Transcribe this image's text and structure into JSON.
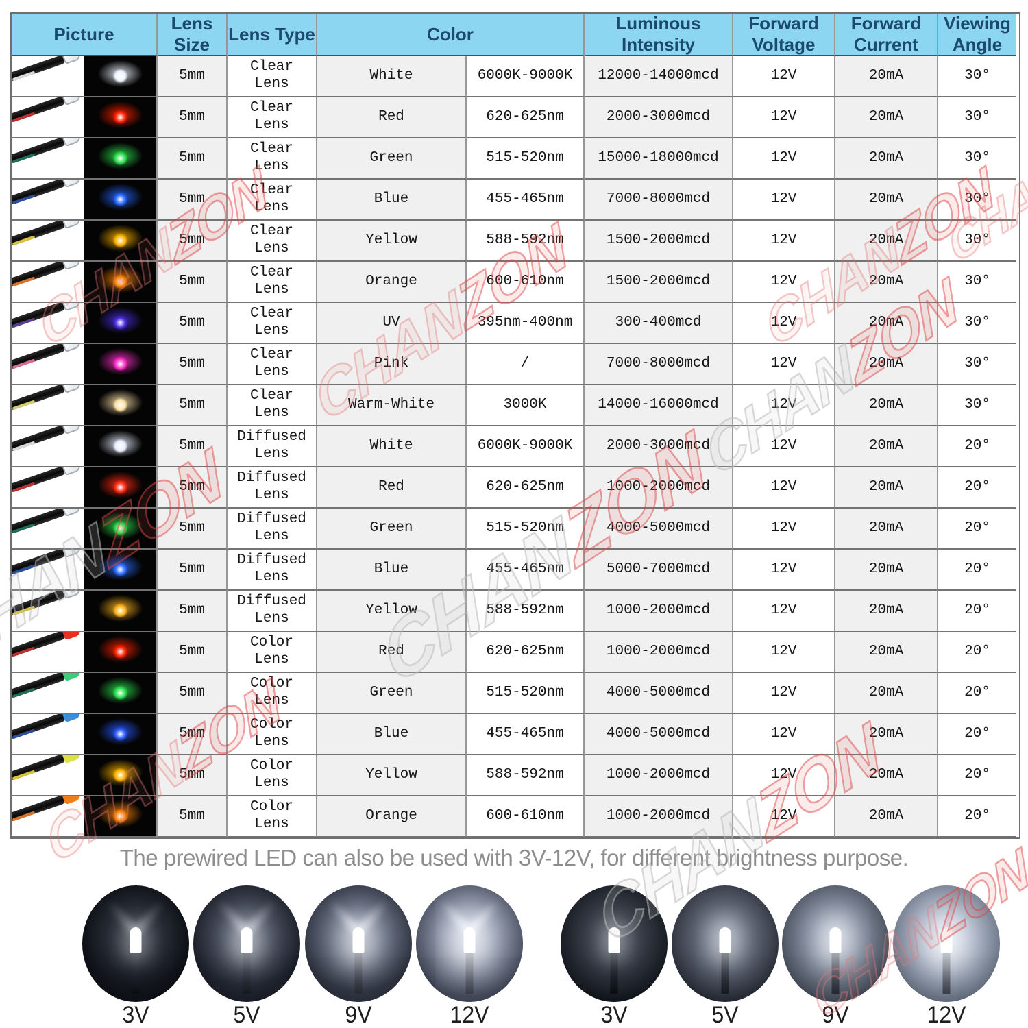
{
  "table": {
    "headers": {
      "picture": "Picture",
      "lens_size": "Lens Size",
      "lens_type": "Lens Type",
      "color": "Color",
      "intensity": "Luminous Intensity",
      "voltage": "Forward Voltage",
      "current": "Forward Current",
      "angle": "Viewing Angle"
    },
    "rows": [
      {
        "lens_size": "5mm",
        "lens_type": "Clear Lens",
        "color_name": "White",
        "color_value": "6000K-9000K",
        "intensity": "12000-14000mcd",
        "voltage": "12V",
        "current": "20mA",
        "angle": "30°",
        "glow": "#eef4ff",
        "stripe": "#d8d8d8",
        "bulb": "clear"
      },
      {
        "lens_size": "5mm",
        "lens_type": "Clear Lens",
        "color_name": "Red",
        "color_value": "620-625nm",
        "intensity": "2000-3000mcd",
        "voltage": "12V",
        "current": "20mA",
        "angle": "30°",
        "glow": "#ff2200",
        "stripe": "#c03030",
        "bulb": "clear"
      },
      {
        "lens_size": "5mm",
        "lens_type": "Clear Lens",
        "color_name": "Green",
        "color_value": "515-520nm",
        "intensity": "15000-18000mcd",
        "voltage": "12V",
        "current": "20mA",
        "angle": "30°",
        "glow": "#2ce24e",
        "stripe": "#1e6e5a",
        "bulb": "clear"
      },
      {
        "lens_size": "5mm",
        "lens_type": "Clear Lens",
        "color_name": "Blue",
        "color_value": "455-465nm",
        "intensity": "7000-8000mcd",
        "voltage": "12V",
        "current": "20mA",
        "angle": "30°",
        "glow": "#2565ff",
        "stripe": "#2a4fa0",
        "bulb": "clear"
      },
      {
        "lens_size": "5mm",
        "lens_type": "Clear Lens",
        "color_name": "Yellow",
        "color_value": "588-592nm",
        "intensity": "1500-2000mcd",
        "voltage": "12V",
        "current": "20mA",
        "angle": "30°",
        "glow": "#ffb400",
        "stripe": "#d8c23a",
        "bulb": "clear"
      },
      {
        "lens_size": "5mm",
        "lens_type": "Clear Lens",
        "color_name": "Orange",
        "color_value": "600-610nm",
        "intensity": "1500-2000mcd",
        "voltage": "12V",
        "current": "20mA",
        "angle": "30°",
        "glow": "#ff8400",
        "stripe": "#d8742a",
        "bulb": "clear"
      },
      {
        "lens_size": "5mm",
        "lens_type": "Clear Lens",
        "color_name": "UV",
        "color_value": "395nm-400nm",
        "intensity": "300-400mcd",
        "voltage": "12V",
        "current": "20mA",
        "angle": "30°",
        "glow": "#4a2de0",
        "stripe": "#5a3f92",
        "bulb": "clear"
      },
      {
        "lens_size": "5mm",
        "lens_type": "Clear Lens",
        "color_name": "Pink",
        "color_value": "/",
        "intensity": "7000-8000mcd",
        "voltage": "12V",
        "current": "20mA",
        "angle": "30°",
        "glow": "#ff30c8",
        "stripe": "#d86a90",
        "bulb": "clear"
      },
      {
        "lens_size": "5mm",
        "lens_type": "Clear Lens",
        "color_name": "Warm-White",
        "color_value": "3000K",
        "intensity": "14000-16000mcd",
        "voltage": "12V",
        "current": "20mA",
        "angle": "30°",
        "glow": "#ffe2a8",
        "stripe": "#cfd06a",
        "bulb": "clear"
      },
      {
        "lens_size": "5mm",
        "lens_type": "Diffused Lens",
        "color_name": "White",
        "color_value": "6000K-9000K",
        "intensity": "2000-3000mcd",
        "voltage": "12V",
        "current": "20mA",
        "angle": "20°",
        "glow": "#e8eeff",
        "stripe": "#d8d8d8",
        "bulb": "clear"
      },
      {
        "lens_size": "5mm",
        "lens_type": "Diffused Lens",
        "color_name": "Red",
        "color_value": "620-625nm",
        "intensity": "1000-2000mcd",
        "voltage": "12V",
        "current": "20mA",
        "angle": "20°",
        "glow": "#ff2a14",
        "stripe": "#c03030",
        "bulb": "clear"
      },
      {
        "lens_size": "5mm",
        "lens_type": "Diffused Lens",
        "color_name": "Green",
        "color_value": "515-520nm",
        "intensity": "4000-5000mcd",
        "voltage": "12V",
        "current": "20mA",
        "angle": "20°",
        "glow": "#2ce24e",
        "stripe": "#1e6e5a",
        "bulb": "clear"
      },
      {
        "lens_size": "5mm",
        "lens_type": "Diffused Lens",
        "color_name": "Blue",
        "color_value": "455-465nm",
        "intensity": "5000-7000mcd",
        "voltage": "12V",
        "current": "20mA",
        "angle": "20°",
        "glow": "#2a6aff",
        "stripe": "#2a4fa0",
        "bulb": "clear"
      },
      {
        "lens_size": "5mm",
        "lens_type": "Diffused Lens",
        "color_name": "Yellow",
        "color_value": "588-592nm",
        "intensity": "1000-2000mcd",
        "voltage": "12V",
        "current": "20mA",
        "angle": "20°",
        "glow": "#ffb41e",
        "stripe": "#d8c23a",
        "bulb": "clear"
      },
      {
        "lens_size": "5mm",
        "lens_type": "Color Lens",
        "color_name": "Red",
        "color_value": "620-625nm",
        "intensity": "1000-2000mcd",
        "voltage": "12V",
        "current": "20mA",
        "angle": "20°",
        "glow": "#ff2000",
        "stripe": "#c03030",
        "bulb": "#e63224"
      },
      {
        "lens_size": "5mm",
        "lens_type": "Color Lens",
        "color_name": "Green",
        "color_value": "515-520nm",
        "intensity": "4000-5000mcd",
        "voltage": "12V",
        "current": "20mA",
        "angle": "20°",
        "glow": "#2ae04e",
        "stripe": "#1e6e5a",
        "bulb": "#3ecc7a"
      },
      {
        "lens_size": "5mm",
        "lens_type": "Color Lens",
        "color_name": "Blue",
        "color_value": "455-465nm",
        "intensity": "4000-5000mcd",
        "voltage": "12V",
        "current": "20mA",
        "angle": "20°",
        "glow": "#2a5aff",
        "stripe": "#2a4fa0",
        "bulb": "#3b8fd8"
      },
      {
        "lens_size": "5mm",
        "lens_type": "Color Lens",
        "color_name": "Yellow",
        "color_value": "588-592nm",
        "intensity": "1000-2000mcd",
        "voltage": "12V",
        "current": "20mA",
        "angle": "20°",
        "glow": "#ffb400",
        "stripe": "#d8c23a",
        "bulb": "#dde04a"
      },
      {
        "lens_size": "5mm",
        "lens_type": "Color Lens",
        "color_name": "Orange",
        "color_value": "600-610nm",
        "intensity": "1000-2000mcd",
        "voltage": "12V",
        "current": "20mA",
        "angle": "20°",
        "glow": "#ff8400",
        "stripe": "#d8742a",
        "bulb": "#ef7f1a"
      }
    ]
  },
  "footer": {
    "caption": "The prewired LED can also be used with 3V-12V, for different brightness purpose.",
    "clear_group": {
      "labels": [
        "3V",
        "5V",
        "9V",
        "12V"
      ]
    },
    "diffused_group": {
      "labels": [
        "3V",
        "5V",
        "9V",
        "12V"
      ]
    }
  },
  "watermark": {
    "part1": "CHAN",
    "part2": "ZON"
  },
  "colors": {
    "header_bg": "#8cd6f2",
    "header_text": "#1b4a6e",
    "row_tint": "#f0f0f0",
    "grid_line": "#737373",
    "caption_text": "#8d8d8d",
    "watermark_gray": "#b9b9b9",
    "watermark_red": "#dd4646"
  }
}
